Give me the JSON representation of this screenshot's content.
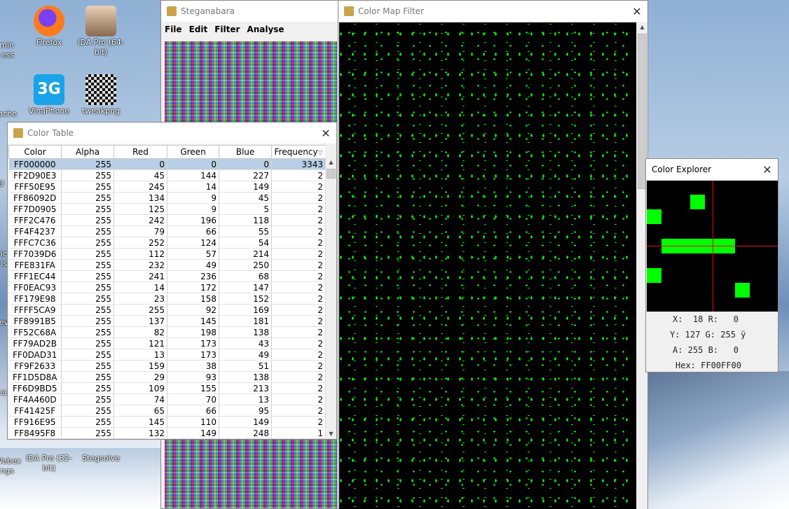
{
  "desktop": {
    "icons": [
      {
        "label": "Firefox",
        "name": "firefox-icon",
        "color": "#ff7a1a"
      },
      {
        "label": "IDA Pro (64-bit)",
        "name": "ida-pro-64-icon",
        "color": "#c9a07a"
      },
      {
        "label": "VinaPhone",
        "name": "vinaphone-icon",
        "color": "#1aa3e8"
      },
      {
        "label": "tweakpng",
        "name": "tweakpng-icon",
        "color": "#222222"
      },
      {
        "label": "IDA Pro (32-bit)",
        "name": "ida-pro-32-icon",
        "color": "#c9a07a"
      },
      {
        "label": "Stegsolve",
        "name": "stegsolve-icon",
        "color": "#c9a44c"
      }
    ],
    "partial_labels": [
      "min",
      "ess",
      "ache",
      "D",
      "ic",
      "ls",
      "ev",
      "na",
      "Webex",
      "ngs"
    ]
  },
  "steganabara": {
    "title": "Steganabara",
    "menu": [
      "File",
      "Edit",
      "Filter",
      "Analyse"
    ]
  },
  "color_table": {
    "title": "Color Table",
    "columns": [
      "Color",
      "Alpha",
      "Red",
      "Green",
      "Blue",
      "Frequency"
    ],
    "sort_indicator": "▽",
    "rows": [
      [
        "FF000000",
        "255",
        "0",
        "0",
        "0",
        "3343"
      ],
      [
        "FF2D90E3",
        "255",
        "45",
        "144",
        "227",
        "2"
      ],
      [
        "FFF50E95",
        "255",
        "245",
        "14",
        "149",
        "2"
      ],
      [
        "FF86092D",
        "255",
        "134",
        "9",
        "45",
        "2"
      ],
      [
        "FF7D0905",
        "255",
        "125",
        "9",
        "5",
        "2"
      ],
      [
        "FFF2C476",
        "255",
        "242",
        "196",
        "118",
        "2"
      ],
      [
        "FF4F4237",
        "255",
        "79",
        "66",
        "55",
        "2"
      ],
      [
        "FFFC7C36",
        "255",
        "252",
        "124",
        "54",
        "2"
      ],
      [
        "FF7039D6",
        "255",
        "112",
        "57",
        "214",
        "2"
      ],
      [
        "FFE831FA",
        "255",
        "232",
        "49",
        "250",
        "2"
      ],
      [
        "FFF1EC44",
        "255",
        "241",
        "236",
        "68",
        "2"
      ],
      [
        "FF0EAC93",
        "255",
        "14",
        "172",
        "147",
        "2"
      ],
      [
        "FF179E98",
        "255",
        "23",
        "158",
        "152",
        "2"
      ],
      [
        "FFFF5CA9",
        "255",
        "255",
        "92",
        "169",
        "2"
      ],
      [
        "FF8991B5",
        "255",
        "137",
        "145",
        "181",
        "2"
      ],
      [
        "FF52C68A",
        "255",
        "82",
        "198",
        "138",
        "2"
      ],
      [
        "FF79AD2B",
        "255",
        "121",
        "173",
        "43",
        "2"
      ],
      [
        "FF0DAD31",
        "255",
        "13",
        "173",
        "49",
        "2"
      ],
      [
        "FF9F2633",
        "255",
        "159",
        "38",
        "51",
        "2"
      ],
      [
        "FF1D5D8A",
        "255",
        "29",
        "93",
        "138",
        "2"
      ],
      [
        "FF6D9BD5",
        "255",
        "109",
        "155",
        "213",
        "2"
      ],
      [
        "FF4A460D",
        "255",
        "74",
        "70",
        "13",
        "2"
      ],
      [
        "FF41425F",
        "255",
        "65",
        "66",
        "95",
        "2"
      ],
      [
        "FF916E95",
        "255",
        "145",
        "110",
        "149",
        "2"
      ],
      [
        "FF8495F8",
        "255",
        "132",
        "149",
        "248",
        "1"
      ]
    ]
  },
  "color_map_filter": {
    "title": "Color Map Filter"
  },
  "color_explorer": {
    "title": "Color Explorer",
    "line1": "X:  18 R:   0",
    "line2": "Y: 127 G: 255 ÿ",
    "line3": "A: 255 B:   0",
    "line4": "Hex: FF00FF00"
  },
  "colors": {
    "green": "#00ff00",
    "crosshair": "#e01010",
    "selection": "#b8cfe5"
  }
}
